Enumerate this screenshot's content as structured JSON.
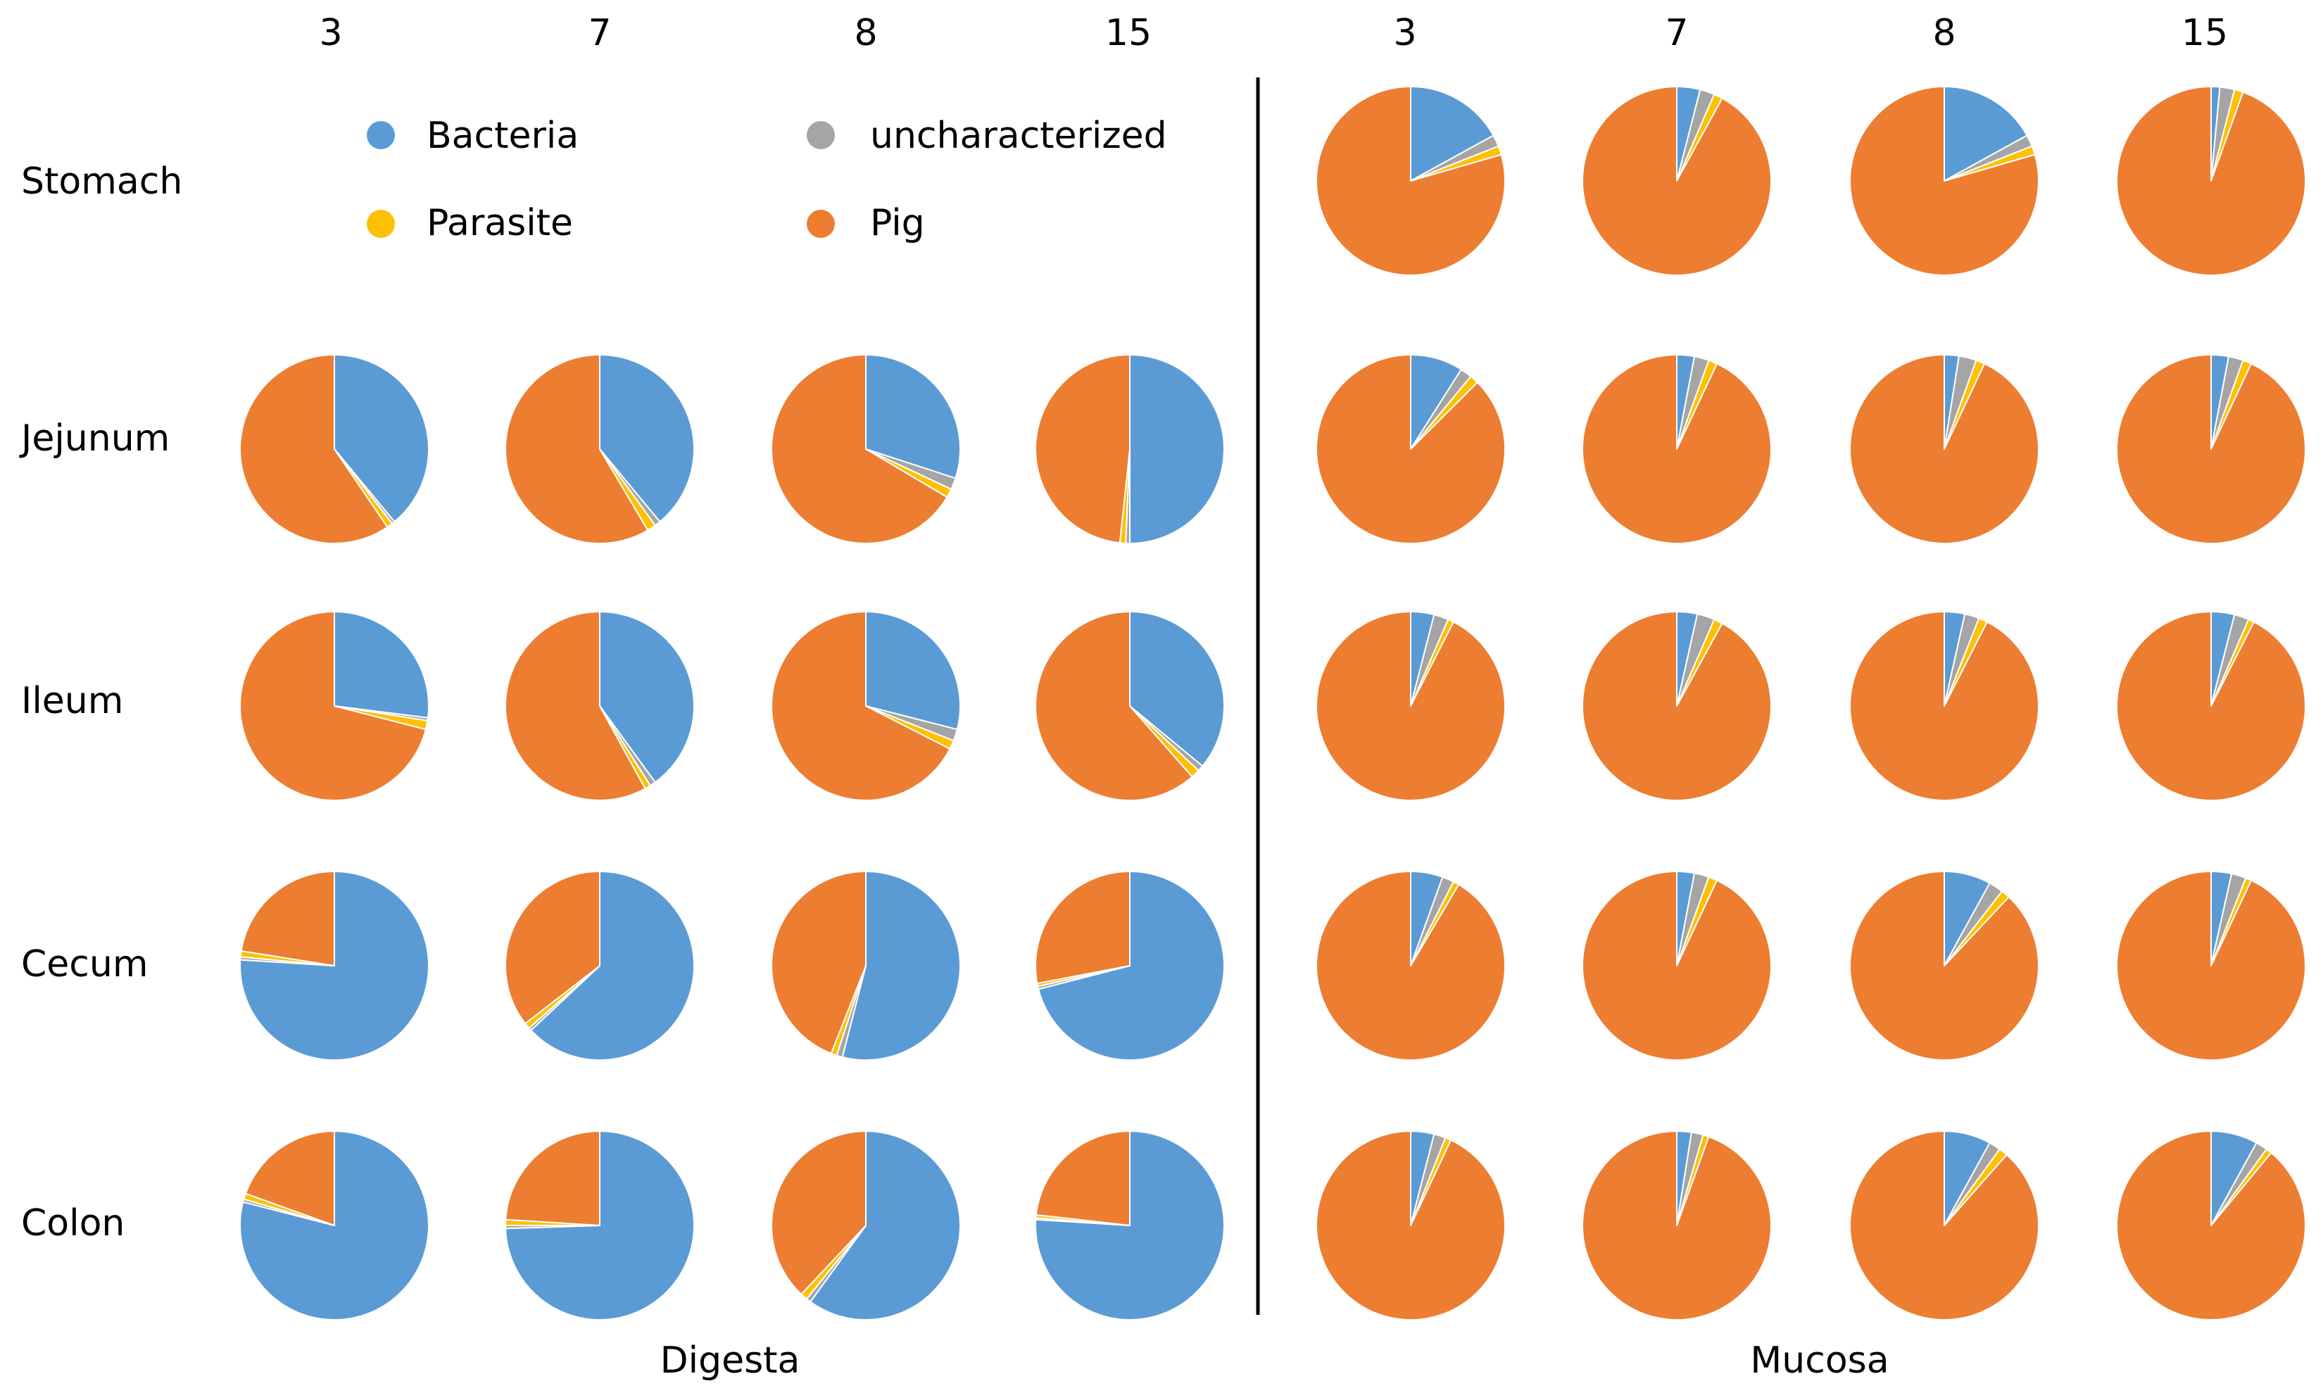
{
  "colors": {
    "Bacteria": "#5B9BD5",
    "uncharacterized": "#A5A5A5",
    "Parasite": "#FFC000",
    "Pig": "#ED7D31"
  },
  "legend": {
    "items": [
      "Bacteria",
      "uncharacterized",
      "Parasite",
      "Pig"
    ]
  },
  "chart_data": {
    "type": "pie",
    "categories": [
      "Bacteria",
      "uncharacterized",
      "Parasite",
      "Pig"
    ],
    "tissues": [
      "Stomach",
      "Jejunum",
      "Ileum",
      "Cecum",
      "Colon"
    ],
    "days": [
      "3",
      "7",
      "8",
      "15"
    ],
    "panels": [
      {
        "name": "Digesta",
        "rows": [
          {
            "tissue": "Stomach",
            "pies": [
              null,
              null,
              null,
              null
            ]
          },
          {
            "tissue": "Jejunum",
            "pies": [
              {
                "day": "3",
                "values": [
                  39.0,
                  0.5,
                  1.0,
                  59.5
                ]
              },
              {
                "day": "7",
                "values": [
                  39.0,
                  1.0,
                  1.5,
                  58.5
                ]
              },
              {
                "day": "8",
                "values": [
                  30.0,
                  2.0,
                  1.5,
                  66.5
                ]
              },
              {
                "day": "15",
                "values": [
                  50.0,
                  0.7,
                  1.0,
                  48.3
                ]
              }
            ]
          },
          {
            "tissue": "Ileum",
            "pies": [
              {
                "day": "3",
                "values": [
                  27.0,
                  0.5,
                  1.5,
                  71.0
                ]
              },
              {
                "day": "7",
                "values": [
                  40.0,
                  1.0,
                  1.0,
                  58.0
                ]
              },
              {
                "day": "8",
                "values": [
                  29.0,
                  2.0,
                  1.5,
                  67.5
                ]
              },
              {
                "day": "15",
                "values": [
                  36.0,
                  1.0,
                  1.5,
                  61.5
                ]
              }
            ]
          },
          {
            "tissue": "Cecum",
            "pies": [
              {
                "day": "3",
                "values": [
                  76.0,
                  0.5,
                  1.0,
                  22.5
                ]
              },
              {
                "day": "7",
                "values": [
                  63.0,
                  0.5,
                  1.0,
                  35.5
                ]
              },
              {
                "day": "8",
                "values": [
                  54.0,
                  1.0,
                  1.0,
                  44.0
                ]
              },
              {
                "day": "15",
                "values": [
                  71.0,
                  0.5,
                  0.5,
                  28.0
                ]
              }
            ]
          },
          {
            "tissue": "Colon",
            "pies": [
              {
                "day": "3",
                "values": [
                  79.0,
                  0.5,
                  1.0,
                  19.5
                ]
              },
              {
                "day": "7",
                "values": [
                  74.5,
                  0.5,
                  1.0,
                  24.0
                ]
              },
              {
                "day": "8",
                "values": [
                  60.0,
                  0.8,
                  1.2,
                  38.0
                ]
              },
              {
                "day": "15",
                "values": [
                  76.0,
                  0.3,
                  0.5,
                  23.2
                ]
              }
            ]
          }
        ]
      },
      {
        "name": "Mucosa",
        "rows": [
          {
            "tissue": "Stomach",
            "pies": [
              {
                "day": "3",
                "values": [
                  17.0,
                  2.0,
                  1.5,
                  79.5
                ]
              },
              {
                "day": "7",
                "values": [
                  4.0,
                  2.5,
                  1.5,
                  92.0
                ]
              },
              {
                "day": "8",
                "values": [
                  17.0,
                  2.0,
                  1.5,
                  79.5
                ]
              },
              {
                "day": "15",
                "values": [
                  1.5,
                  2.5,
                  1.5,
                  94.5
                ]
              }
            ]
          },
          {
            "tissue": "Jejunum",
            "pies": [
              {
                "day": "3",
                "values": [
                  9.0,
                  2.0,
                  1.5,
                  87.5
                ]
              },
              {
                "day": "7",
                "values": [
                  3.0,
                  2.5,
                  1.5,
                  93.0
                ]
              },
              {
                "day": "8",
                "values": [
                  2.5,
                  3.0,
                  1.5,
                  93.0
                ]
              },
              {
                "day": "15",
                "values": [
                  3.0,
                  2.5,
                  1.5,
                  93.0
                ]
              }
            ]
          },
          {
            "tissue": "Ileum",
            "pies": [
              {
                "day": "3",
                "values": [
                  4.0,
                  2.5,
                  1.0,
                  92.5
                ]
              },
              {
                "day": "7",
                "values": [
                  3.5,
                  3.0,
                  1.5,
                  92.0
                ]
              },
              {
                "day": "8",
                "values": [
                  3.5,
                  2.5,
                  1.5,
                  92.5
                ]
              },
              {
                "day": "15",
                "values": [
                  4.0,
                  2.5,
                  1.0,
                  92.5
                ]
              }
            ]
          },
          {
            "tissue": "Cecum",
            "pies": [
              {
                "day": "3",
                "values": [
                  5.5,
                  2.0,
                  1.0,
                  91.5
                ]
              },
              {
                "day": "7",
                "values": [
                  3.0,
                  2.5,
                  1.5,
                  93.0
                ]
              },
              {
                "day": "8",
                "values": [
                  8.0,
                  2.5,
                  1.5,
                  88.0
                ]
              },
              {
                "day": "15",
                "values": [
                  3.5,
                  2.5,
                  1.0,
                  93.0
                ]
              }
            ]
          },
          {
            "tissue": "Colon",
            "pies": [
              {
                "day": "3",
                "values": [
                  4.0,
                  2.0,
                  1.0,
                  93.0
                ]
              },
              {
                "day": "7",
                "values": [
                  2.5,
                  2.0,
                  1.0,
                  94.5
                ]
              },
              {
                "day": "8",
                "values": [
                  8.0,
                  2.0,
                  1.5,
                  88.5
                ]
              },
              {
                "day": "15",
                "values": [
                  8.0,
                  2.0,
                  1.0,
                  89.0
                ]
              }
            ]
          }
        ]
      }
    ]
  }
}
